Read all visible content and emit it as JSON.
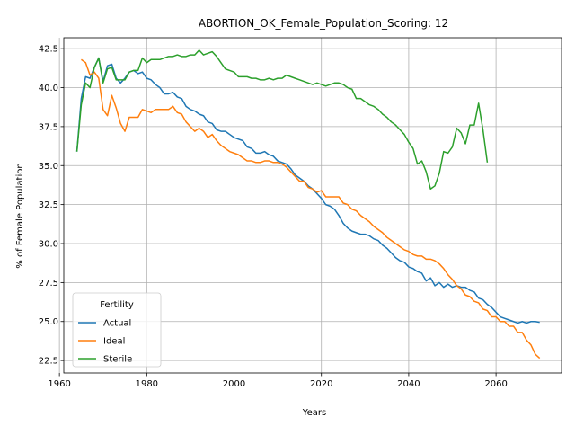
{
  "chart_data": {
    "type": "line",
    "title": "ABORTION_OK_Female_Population_Scoring: 12",
    "xlabel": "Years",
    "ylabel": "% of Female Population",
    "xlim": [
      1961,
      2075
    ],
    "ylim": [
      21.7,
      43.2
    ],
    "xticks": [
      1960,
      1980,
      2000,
      2020,
      2040,
      2060
    ],
    "yticks": [
      22.5,
      25.0,
      27.5,
      30.0,
      32.5,
      35.0,
      37.5,
      40.0,
      42.5
    ],
    "xtick_labels": [
      "1960",
      "1980",
      "2000",
      "2020",
      "2040",
      "2060"
    ],
    "ytick_labels": [
      "22.5",
      "25.0",
      "27.5",
      "30.0",
      "32.5",
      "35.0",
      "37.5",
      "40.0",
      "42.5"
    ],
    "grid": true,
    "legend": {
      "title": "Fertility",
      "placement": "lower-left"
    },
    "series": [
      {
        "name": "Actual",
        "color": "#1f77b4",
        "points": [
          [
            1964,
            35.9
          ],
          [
            1965,
            39.3
          ],
          [
            1966,
            40.7
          ],
          [
            1967,
            40.6
          ],
          [
            1968,
            41.3
          ],
          [
            1969,
            41.9
          ],
          [
            1970,
            40.4
          ],
          [
            1971,
            41.4
          ],
          [
            1972,
            41.5
          ],
          [
            1973,
            40.6
          ],
          [
            1974,
            40.3
          ],
          [
            1975,
            40.6
          ],
          [
            1976,
            41.0
          ],
          [
            1977,
            41.1
          ],
          [
            1978,
            40.9
          ],
          [
            1979,
            41.0
          ],
          [
            1980,
            40.6
          ],
          [
            1981,
            40.5
          ],
          [
            1982,
            40.2
          ],
          [
            1983,
            40.0
          ],
          [
            1984,
            39.6
          ],
          [
            1985,
            39.6
          ],
          [
            1986,
            39.7
          ],
          [
            1987,
            39.4
          ],
          [
            1988,
            39.3
          ],
          [
            1989,
            38.8
          ],
          [
            1990,
            38.6
          ],
          [
            1991,
            38.5
          ],
          [
            1992,
            38.3
          ],
          [
            1993,
            38.2
          ],
          [
            1994,
            37.8
          ],
          [
            1995,
            37.7
          ],
          [
            1996,
            37.3
          ],
          [
            1997,
            37.2
          ],
          [
            1998,
            37.2
          ],
          [
            1999,
            37.0
          ],
          [
            2000,
            36.8
          ],
          [
            2001,
            36.7
          ],
          [
            2002,
            36.6
          ],
          [
            2003,
            36.2
          ],
          [
            2004,
            36.1
          ],
          [
            2005,
            35.8
          ],
          [
            2006,
            35.8
          ],
          [
            2007,
            35.9
          ],
          [
            2008,
            35.7
          ],
          [
            2009,
            35.6
          ],
          [
            2010,
            35.3
          ],
          [
            2011,
            35.2
          ],
          [
            2012,
            35.1
          ],
          [
            2013,
            34.8
          ],
          [
            2014,
            34.4
          ],
          [
            2015,
            34.2
          ],
          [
            2016,
            34.0
          ],
          [
            2017,
            33.7
          ],
          [
            2018,
            33.5
          ],
          [
            2019,
            33.2
          ],
          [
            2020,
            32.9
          ],
          [
            2021,
            32.5
          ],
          [
            2022,
            32.4
          ],
          [
            2023,
            32.2
          ],
          [
            2024,
            31.8
          ],
          [
            2025,
            31.3
          ],
          [
            2026,
            31.0
          ],
          [
            2027,
            30.8
          ],
          [
            2028,
            30.7
          ],
          [
            2029,
            30.6
          ],
          [
            2030,
            30.6
          ],
          [
            2031,
            30.5
          ],
          [
            2032,
            30.3
          ],
          [
            2033,
            30.2
          ],
          [
            2034,
            29.9
          ],
          [
            2035,
            29.7
          ],
          [
            2036,
            29.4
          ],
          [
            2037,
            29.1
          ],
          [
            2038,
            28.9
          ],
          [
            2039,
            28.8
          ],
          [
            2040,
            28.5
          ],
          [
            2041,
            28.4
          ],
          [
            2042,
            28.2
          ],
          [
            2043,
            28.1
          ],
          [
            2044,
            27.6
          ],
          [
            2045,
            27.8
          ],
          [
            2046,
            27.3
          ],
          [
            2047,
            27.5
          ],
          [
            2048,
            27.2
          ],
          [
            2049,
            27.4
          ],
          [
            2050,
            27.2
          ],
          [
            2051,
            27.3
          ],
          [
            2052,
            27.2
          ],
          [
            2053,
            27.2
          ],
          [
            2054,
            27.0
          ],
          [
            2055,
            26.9
          ],
          [
            2056,
            26.5
          ],
          [
            2057,
            26.4
          ],
          [
            2058,
            26.1
          ],
          [
            2059,
            25.9
          ],
          [
            2060,
            25.6
          ],
          [
            2061,
            25.3
          ],
          [
            2062,
            25.2
          ],
          [
            2063,
            25.1
          ],
          [
            2064,
            25.0
          ],
          [
            2065,
            24.9
          ],
          [
            2066,
            25.0
          ],
          [
            2067,
            24.9
          ],
          [
            2068,
            25.0
          ],
          [
            2069,
            25.0
          ],
          [
            2070,
            24.95
          ]
        ]
      },
      {
        "name": "Ideal",
        "color": "#ff7f0e",
        "points": [
          [
            1965,
            41.8
          ],
          [
            1966,
            41.6
          ],
          [
            1967,
            40.8
          ],
          [
            1968,
            41.0
          ],
          [
            1969,
            40.6
          ],
          [
            1970,
            38.6
          ],
          [
            1971,
            38.2
          ],
          [
            1972,
            39.5
          ],
          [
            1973,
            38.7
          ],
          [
            1974,
            37.7
          ],
          [
            1975,
            37.2
          ],
          [
            1976,
            38.1
          ],
          [
            1977,
            38.1
          ],
          [
            1978,
            38.1
          ],
          [
            1979,
            38.6
          ],
          [
            1980,
            38.5
          ],
          [
            1981,
            38.4
          ],
          [
            1982,
            38.6
          ],
          [
            1983,
            38.6
          ],
          [
            1984,
            38.6
          ],
          [
            1985,
            38.6
          ],
          [
            1986,
            38.8
          ],
          [
            1987,
            38.4
          ],
          [
            1988,
            38.3
          ],
          [
            1989,
            37.8
          ],
          [
            1990,
            37.5
          ],
          [
            1991,
            37.2
          ],
          [
            1992,
            37.4
          ],
          [
            1993,
            37.2
          ],
          [
            1994,
            36.8
          ],
          [
            1995,
            37.0
          ],
          [
            1996,
            36.6
          ],
          [
            1997,
            36.3
          ],
          [
            1998,
            36.1
          ],
          [
            1999,
            35.9
          ],
          [
            2000,
            35.8
          ],
          [
            2001,
            35.7
          ],
          [
            2002,
            35.5
          ],
          [
            2003,
            35.3
          ],
          [
            2004,
            35.3
          ],
          [
            2005,
            35.2
          ],
          [
            2006,
            35.2
          ],
          [
            2007,
            35.3
          ],
          [
            2008,
            35.3
          ],
          [
            2009,
            35.2
          ],
          [
            2010,
            35.2
          ],
          [
            2011,
            35.1
          ],
          [
            2012,
            34.9
          ],
          [
            2013,
            34.6
          ],
          [
            2014,
            34.3
          ],
          [
            2015,
            34.0
          ],
          [
            2016,
            34.0
          ],
          [
            2017,
            33.6
          ],
          [
            2018,
            33.5
          ],
          [
            2019,
            33.3
          ],
          [
            2020,
            33.4
          ],
          [
            2021,
            33.0
          ],
          [
            2022,
            33.0
          ],
          [
            2023,
            33.0
          ],
          [
            2024,
            33.0
          ],
          [
            2025,
            32.6
          ],
          [
            2026,
            32.5
          ],
          [
            2027,
            32.2
          ],
          [
            2028,
            32.1
          ],
          [
            2029,
            31.8
          ],
          [
            2030,
            31.6
          ],
          [
            2031,
            31.4
          ],
          [
            2032,
            31.1
          ],
          [
            2033,
            30.9
          ],
          [
            2034,
            30.7
          ],
          [
            2035,
            30.4
          ],
          [
            2036,
            30.2
          ],
          [
            2037,
            30.0
          ],
          [
            2038,
            29.8
          ],
          [
            2039,
            29.6
          ],
          [
            2040,
            29.5
          ],
          [
            2041,
            29.3
          ],
          [
            2042,
            29.2
          ],
          [
            2043,
            29.2
          ],
          [
            2044,
            29.0
          ],
          [
            2045,
            29.0
          ],
          [
            2046,
            28.9
          ],
          [
            2047,
            28.7
          ],
          [
            2048,
            28.4
          ],
          [
            2049,
            28.0
          ],
          [
            2050,
            27.7
          ],
          [
            2051,
            27.3
          ],
          [
            2052,
            27.1
          ],
          [
            2053,
            26.7
          ],
          [
            2054,
            26.6
          ],
          [
            2055,
            26.3
          ],
          [
            2056,
            26.2
          ],
          [
            2057,
            25.8
          ],
          [
            2058,
            25.7
          ],
          [
            2059,
            25.3
          ],
          [
            2060,
            25.3
          ],
          [
            2061,
            25.0
          ],
          [
            2062,
            25.0
          ],
          [
            2063,
            24.7
          ],
          [
            2064,
            24.7
          ],
          [
            2065,
            24.3
          ],
          [
            2066,
            24.3
          ],
          [
            2067,
            23.8
          ],
          [
            2068,
            23.5
          ],
          [
            2069,
            22.9
          ],
          [
            2070,
            22.65
          ]
        ]
      },
      {
        "name": "Sterile",
        "color": "#2ca02c",
        "points": [
          [
            1964,
            35.9
          ],
          [
            1965,
            38.9
          ],
          [
            1966,
            40.3
          ],
          [
            1967,
            40.0
          ],
          [
            1968,
            41.3
          ],
          [
            1969,
            41.9
          ],
          [
            1970,
            40.3
          ],
          [
            1971,
            41.2
          ],
          [
            1972,
            41.3
          ],
          [
            1973,
            40.5
          ],
          [
            1974,
            40.5
          ],
          [
            1975,
            40.5
          ],
          [
            1976,
            41.0
          ],
          [
            1977,
            41.1
          ],
          [
            1978,
            41.1
          ],
          [
            1979,
            41.9
          ],
          [
            1980,
            41.6
          ],
          [
            1981,
            41.8
          ],
          [
            1982,
            41.8
          ],
          [
            1983,
            41.8
          ],
          [
            1984,
            41.9
          ],
          [
            1985,
            42.0
          ],
          [
            1986,
            42.0
          ],
          [
            1987,
            42.1
          ],
          [
            1988,
            42.0
          ],
          [
            1989,
            42.0
          ],
          [
            1990,
            42.1
          ],
          [
            1991,
            42.1
          ],
          [
            1992,
            42.4
          ],
          [
            1993,
            42.1
          ],
          [
            1994,
            42.2
          ],
          [
            1995,
            42.3
          ],
          [
            1996,
            42.0
          ],
          [
            1997,
            41.6
          ],
          [
            1998,
            41.2
          ],
          [
            1999,
            41.1
          ],
          [
            2000,
            41.0
          ],
          [
            2001,
            40.7
          ],
          [
            2002,
            40.7
          ],
          [
            2003,
            40.7
          ],
          [
            2004,
            40.6
          ],
          [
            2005,
            40.6
          ],
          [
            2006,
            40.5
          ],
          [
            2007,
            40.5
          ],
          [
            2008,
            40.6
          ],
          [
            2009,
            40.5
          ],
          [
            2010,
            40.6
          ],
          [
            2011,
            40.6
          ],
          [
            2012,
            40.8
          ],
          [
            2013,
            40.7
          ],
          [
            2014,
            40.6
          ],
          [
            2015,
            40.5
          ],
          [
            2016,
            40.4
          ],
          [
            2017,
            40.3
          ],
          [
            2018,
            40.2
          ],
          [
            2019,
            40.3
          ],
          [
            2020,
            40.2
          ],
          [
            2021,
            40.1
          ],
          [
            2022,
            40.2
          ],
          [
            2023,
            40.3
          ],
          [
            2024,
            40.3
          ],
          [
            2025,
            40.2
          ],
          [
            2026,
            40.0
          ],
          [
            2027,
            39.9
          ],
          [
            2028,
            39.3
          ],
          [
            2029,
            39.3
          ],
          [
            2030,
            39.1
          ],
          [
            2031,
            38.9
          ],
          [
            2032,
            38.8
          ],
          [
            2033,
            38.6
          ],
          [
            2034,
            38.3
          ],
          [
            2035,
            38.1
          ],
          [
            2036,
            37.8
          ],
          [
            2037,
            37.6
          ],
          [
            2038,
            37.3
          ],
          [
            2039,
            37.0
          ],
          [
            2040,
            36.5
          ],
          [
            2041,
            36.1
          ],
          [
            2042,
            35.1
          ],
          [
            2043,
            35.3
          ],
          [
            2044,
            34.6
          ],
          [
            2045,
            33.5
          ],
          [
            2046,
            33.7
          ],
          [
            2047,
            34.5
          ],
          [
            2048,
            35.9
          ],
          [
            2049,
            35.8
          ],
          [
            2050,
            36.2
          ],
          [
            2051,
            37.4
          ],
          [
            2052,
            37.1
          ],
          [
            2053,
            36.4
          ],
          [
            2054,
            37.6
          ],
          [
            2055,
            37.6
          ],
          [
            2056,
            39.0
          ],
          [
            2057,
            37.3
          ],
          [
            2058,
            35.2
          ]
        ]
      }
    ]
  }
}
